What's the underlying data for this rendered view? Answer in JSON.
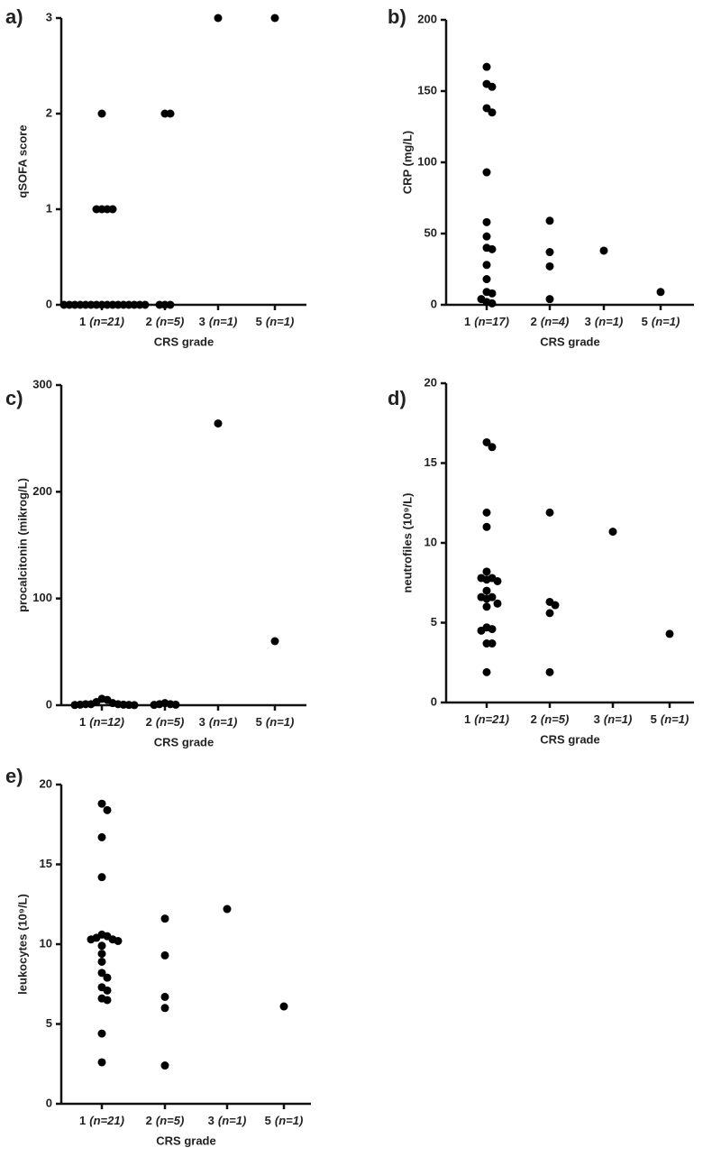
{
  "chart_data": [
    {
      "type": "scatter",
      "panel": "a)",
      "ylabel": "qSOFA score",
      "xlabel": "CRS grade",
      "categories": [
        "1",
        "2",
        "3",
        "5"
      ],
      "n_labels": [
        "(n=21)",
        "(n=5)",
        "(n=1)",
        "(n=1)"
      ],
      "color": "#000000",
      "ylim": [
        0,
        3
      ],
      "yticks": [
        0,
        1,
        2,
        3
      ],
      "values": [
        [
          2,
          1,
          1,
          1,
          1,
          0,
          0,
          0,
          0,
          0,
          0,
          0,
          0,
          0,
          0,
          0,
          0,
          0,
          0,
          0,
          0
        ],
        [
          2,
          2,
          0,
          0,
          0
        ],
        [
          3
        ],
        [
          3
        ]
      ]
    },
    {
      "type": "scatter",
      "panel": "b)",
      "ylabel": "CRP (mg/L)",
      "xlabel": "CRS grade",
      "categories": [
        "1",
        "2",
        "3",
        "5"
      ],
      "n_labels": [
        "(n=17)",
        "(n=4)",
        "(n=1)",
        "(n=1)"
      ],
      "color": "#000000",
      "ylim": [
        0,
        200
      ],
      "yticks": [
        0,
        50,
        100,
        150,
        200
      ],
      "values": [
        [
          167,
          155,
          153,
          138,
          135,
          93,
          58,
          48,
          40,
          39,
          28,
          18,
          9,
          8,
          4,
          2,
          1
        ],
        [
          59,
          37,
          27,
          4
        ],
        [
          38
        ],
        [
          9
        ]
      ]
    },
    {
      "type": "scatter",
      "panel": "c)",
      "ylabel": "procalcitonin (mikrog/L)",
      "xlabel": "CRS grade",
      "categories": [
        "1",
        "2",
        "3",
        "5"
      ],
      "n_labels": [
        "(n=12)",
        "(n=5)",
        "(n=1)",
        "(n=1)"
      ],
      "color": "#000000",
      "ylim": [
        0,
        300
      ],
      "yticks": [
        0,
        100,
        200,
        300
      ],
      "values": [
        [
          6,
          5,
          3,
          2,
          1,
          1,
          1,
          0.5,
          0.5,
          0.3,
          0.2,
          0.1
        ],
        [
          2,
          1,
          1,
          0.5,
          0.3
        ],
        [
          264
        ],
        [
          60
        ]
      ]
    },
    {
      "type": "scatter",
      "panel": "d)",
      "ylabel": "neutrofiles (10⁹/L)",
      "xlabel": "CRS grade",
      "categories": [
        "1",
        "2",
        "3",
        "5"
      ],
      "n_labels": [
        "(n=21)",
        "(n=5)",
        "(n=1)",
        "(n=1)"
      ],
      "color": "#000000",
      "ylim": [
        0,
        20
      ],
      "yticks": [
        0,
        5,
        10,
        15,
        20
      ],
      "values": [
        [
          16.3,
          16.0,
          11.9,
          11.0,
          8.2,
          7.8,
          7.8,
          7.7,
          7.6,
          7.0,
          6.6,
          6.5,
          6.6,
          6.2,
          6.0,
          4.7,
          4.6,
          4.5,
          3.7,
          3.7,
          1.9
        ],
        [
          11.9,
          6.3,
          6.1,
          5.6,
          1.9
        ],
        [
          10.7
        ],
        [
          4.3
        ]
      ]
    },
    {
      "type": "scatter",
      "panel": "e)",
      "ylabel": "leukocytes (10⁹/L)",
      "xlabel": "CRS grade",
      "categories": [
        "1",
        "2",
        "3",
        "5"
      ],
      "n_labels": [
        "(n=21)",
        "(n=5)",
        "(n=1)",
        "(n=1)"
      ],
      "color": "#000000",
      "ylim": [
        0,
        20
      ],
      "yticks": [
        0,
        5,
        10,
        15,
        20
      ],
      "values": [
        [
          18.8,
          18.4,
          16.7,
          14.2,
          10.6,
          10.5,
          10.4,
          10.3,
          10.3,
          10.2,
          9.9,
          9.4,
          8.9,
          8.2,
          7.9,
          7.3,
          7.1,
          6.6,
          6.5,
          4.4,
          2.6
        ],
        [
          11.6,
          9.3,
          6.7,
          6.0,
          2.4
        ],
        [
          12.2
        ],
        [
          6.1
        ]
      ]
    }
  ]
}
